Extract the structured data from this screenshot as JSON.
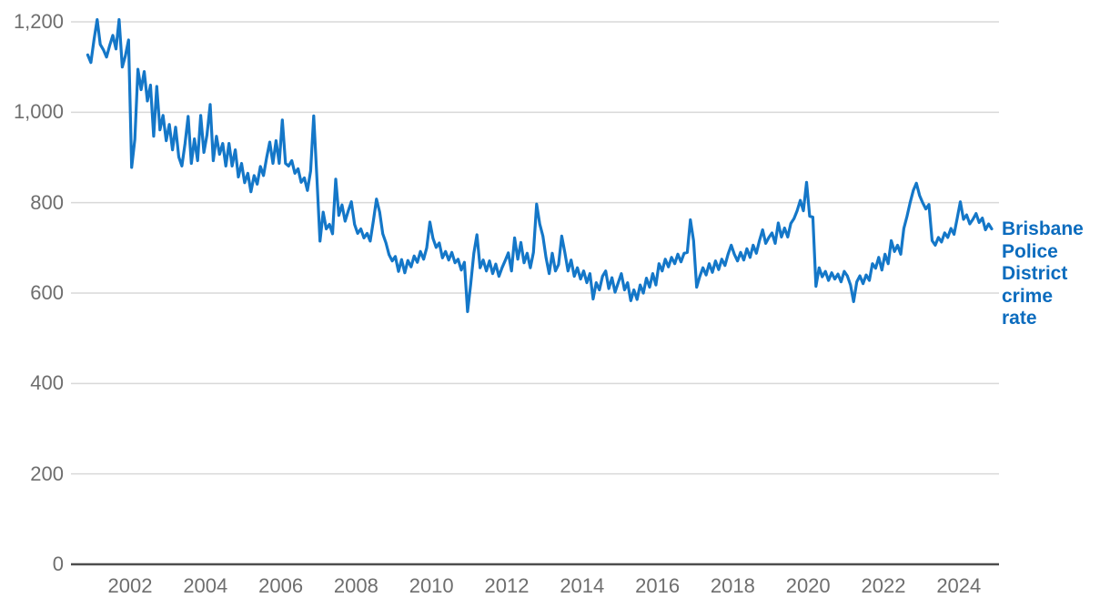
{
  "chart_data": {
    "type": "line",
    "title": "",
    "xlabel": "",
    "ylabel": "",
    "series_label": "Brisbane Police District crime rate",
    "grid": "horizontal-only",
    "legend_position": "right-of-line-end",
    "ylim": [
      0,
      1200
    ],
    "x_range": [
      "2000-11",
      "2024-11"
    ],
    "frequency": "monthly",
    "y_tick_values": [
      0,
      200,
      400,
      600,
      800,
      1000,
      1200
    ],
    "y_tick_labels": [
      "0",
      "200",
      "400",
      "600",
      "800",
      "1,000",
      "1,200"
    ],
    "x_tick_years": [
      2002,
      2004,
      2006,
      2008,
      2010,
      2012,
      2014,
      2016,
      2018,
      2020,
      2022,
      2024
    ],
    "x_tick_labels": [
      "2002",
      "2004",
      "2006",
      "2008",
      "2010",
      "2012",
      "2014",
      "2016",
      "2018",
      "2020",
      "2022",
      "2024"
    ],
    "line_color": "#1477c8",
    "label_color": "#0c6cbe",
    "axis_color": "#4d4d4d",
    "gridline_color": "#d9d9d9",
    "tick_label_color": "#6e6e6e",
    "series": [
      {
        "name": "Brisbane Police District crime rate",
        "start": "2000-11",
        "values": [
          1127,
          1110,
          1160,
          1205,
          1150,
          1138,
          1122,
          1148,
          1170,
          1140,
          1205,
          1100,
          1125,
          1160,
          878,
          940,
          1095,
          1050,
          1090,
          1025,
          1060,
          947,
          1057,
          961,
          993,
          937,
          973,
          917,
          967,
          901,
          881,
          931,
          991,
          887,
          941,
          893,
          993,
          911,
          950,
          1017,
          893,
          947,
          907,
          931,
          881,
          931,
          881,
          917,
          857,
          887,
          844,
          865,
          824,
          860,
          841,
          880,
          860,
          900,
          934,
          887,
          937,
          887,
          983,
          887,
          881,
          893,
          865,
          875,
          845,
          855,
          827,
          870,
          992,
          855,
          715,
          779,
          742,
          752,
          731,
          852,
          772,
          795,
          759,
          782,
          802,
          752,
          732,
          742,
          722,
          732,
          715,
          760,
          808,
          779,
          731,
          711,
          685,
          671,
          681,
          648,
          674,
          645,
          672,
          658,
          682,
          668,
          692,
          675,
          700,
          757,
          721,
          701,
          711,
          678,
          692,
          673,
          690,
          667,
          675,
          651,
          668,
          559,
          619,
          688,
          729,
          656,
          673,
          649,
          671,
          643,
          664,
          637,
          656,
          672,
          689,
          649,
          722,
          675,
          712,
          667,
          688,
          656,
          690,
          797,
          753,
          726,
          679,
          643,
          688,
          649,
          663,
          726,
          690,
          649,
          673,
          637,
          656,
          631,
          649,
          623,
          643,
          587,
          623,
          607,
          637,
          649,
          610,
          634,
          602,
          623,
          643,
          607,
          623,
          583,
          607,
          586,
          618,
          600,
          633,
          613,
          643,
          618,
          665,
          649,
          675,
          658,
          679,
          665,
          686,
          669,
          688,
          690,
          762,
          716,
          613,
          637,
          656,
          640,
          665,
          646,
          671,
          652,
          675,
          661,
          686,
          706,
          686,
          671,
          690,
          673,
          698,
          679,
          706,
          688,
          716,
          740,
          710,
          723,
          733,
          710,
          755,
          724,
          744,
          724,
          754,
          765,
          782,
          805,
          782,
          845,
          770,
          768,
          615,
          656,
          636,
          648,
          628,
          645,
          631,
          642,
          625,
          648,
          638,
          618,
          581,
          625,
          638,
          621,
          640,
          628,
          665,
          655,
          679,
          651,
          686,
          665,
          716,
          692,
          706,
          686,
          743,
          770,
          800,
          827,
          843,
          816,
          800,
          786,
          796,
          716,
          706,
          723,
          713,
          733,
          723,
          743,
          730,
          766,
          802,
          763,
          773,
          753,
          763,
          776,
          756,
          766,
          740,
          753,
          742
        ]
      }
    ]
  }
}
